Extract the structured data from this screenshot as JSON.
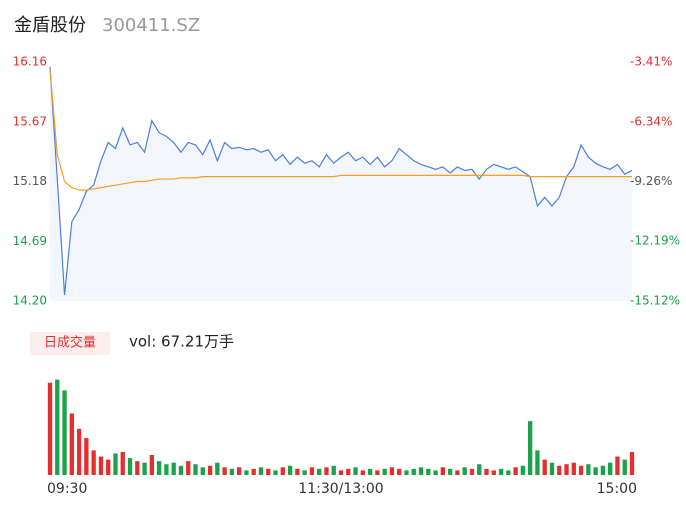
{
  "header": {
    "name": "金盾股份",
    "code": "300411.SZ"
  },
  "chart_data": [
    {
      "type": "line",
      "xlim": [
        0,
        80
      ],
      "xticks": [
        {
          "value": 0,
          "label": "09:30"
        },
        {
          "value": 40,
          "label": "11:30/13:00"
        },
        {
          "value": 80,
          "label": "15:00"
        }
      ],
      "ylim": [
        14.2,
        16.16
      ],
      "yticks": [
        {
          "value": 14.2,
          "label": "14.20"
        },
        14.69,
        15.18,
        15.67,
        16.16
      ],
      "y2lim": [
        -15.12,
        -3.41
      ],
      "y2ticks": [
        {
          "value": -15.12,
          "label": "-15.12%"
        },
        {
          "value": -12.19,
          "label": "-12.19%"
        },
        {
          "value": -9.26,
          "label": "-9.26%"
        },
        {
          "value": -6.34,
          "label": "-6.34%"
        },
        {
          "value": -3.41,
          "label": "-3.41%"
        }
      ],
      "up_color": "#e62e2e",
      "down_color": "#1aa34a",
      "flat_color": "#555555",
      "series": [
        {
          "name": "price",
          "color": "#4a7fe0",
          "fill": "#f3f6fc",
          "values": [
            16.12,
            15.2,
            14.25,
            14.85,
            14.95,
            15.1,
            15.15,
            15.35,
            15.5,
            15.45,
            15.62,
            15.48,
            15.5,
            15.42,
            15.68,
            15.58,
            15.55,
            15.5,
            15.42,
            15.5,
            15.48,
            15.4,
            15.52,
            15.35,
            15.5,
            15.45,
            15.46,
            15.44,
            15.45,
            15.42,
            15.44,
            15.35,
            15.4,
            15.32,
            15.38,
            15.33,
            15.35,
            15.3,
            15.4,
            15.33,
            15.38,
            15.42,
            15.35,
            15.38,
            15.32,
            15.38,
            15.3,
            15.35,
            15.45,
            15.4,
            15.35,
            15.32,
            15.3,
            15.28,
            15.3,
            15.25,
            15.3,
            15.27,
            15.28,
            15.2,
            15.28,
            15.32,
            15.3,
            15.28,
            15.3,
            15.26,
            15.22,
            14.98,
            15.05,
            14.98,
            15.05,
            15.22,
            15.3,
            15.48,
            15.38,
            15.33,
            15.3,
            15.28,
            15.32,
            15.24,
            15.27
          ]
        },
        {
          "name": "average",
          "color": "#f2a01e",
          "values": [
            16.1,
            15.4,
            15.18,
            15.13,
            15.11,
            15.11,
            15.12,
            15.13,
            15.14,
            15.15,
            15.16,
            15.17,
            15.18,
            15.18,
            15.19,
            15.2,
            15.2,
            15.2,
            15.21,
            15.21,
            15.21,
            15.22,
            15.22,
            15.22,
            15.22,
            15.22,
            15.22,
            15.22,
            15.22,
            15.22,
            15.22,
            15.22,
            15.22,
            15.22,
            15.22,
            15.22,
            15.22,
            15.22,
            15.22,
            15.22,
            15.23,
            15.23,
            15.23,
            15.23,
            15.23,
            15.23,
            15.23,
            15.23,
            15.23,
            15.23,
            15.23,
            15.23,
            15.23,
            15.23,
            15.23,
            15.23,
            15.23,
            15.23,
            15.23,
            15.23,
            15.23,
            15.23,
            15.23,
            15.23,
            15.23,
            15.23,
            15.22,
            15.22,
            15.22,
            15.22,
            15.22,
            15.22,
            15.22,
            15.22,
            15.22,
            15.22,
            15.22,
            15.22,
            15.22,
            15.22,
            15.22
          ]
        }
      ]
    },
    {
      "type": "bar",
      "legend": "日成交量",
      "volume_label": "vol: 67.21万手",
      "ylim": [
        0,
        6.5
      ],
      "values": [
        6.0,
        6.2,
        5.5,
        4.0,
        3.0,
        2.4,
        1.6,
        1.2,
        1.0,
        1.4,
        1.5,
        1.1,
        0.9,
        0.8,
        1.3,
        0.9,
        0.7,
        0.8,
        0.6,
        0.9,
        0.7,
        0.5,
        0.6,
        0.8,
        0.5,
        0.4,
        0.5,
        0.3,
        0.4,
        0.5,
        0.4,
        0.3,
        0.5,
        0.6,
        0.4,
        0.3,
        0.5,
        0.4,
        0.5,
        0.6,
        0.3,
        0.4,
        0.5,
        0.3,
        0.4,
        0.3,
        0.4,
        0.5,
        0.4,
        0.3,
        0.4,
        0.5,
        0.4,
        0.3,
        0.5,
        0.4,
        0.3,
        0.5,
        0.4,
        0.7,
        0.4,
        0.3,
        0.4,
        0.3,
        0.5,
        0.6,
        3.5,
        1.6,
        1.0,
        0.8,
        0.6,
        0.7,
        0.8,
        0.6,
        0.7,
        0.5,
        0.6,
        0.8,
        1.2,
        1.0,
        1.5
      ]
    }
  ]
}
